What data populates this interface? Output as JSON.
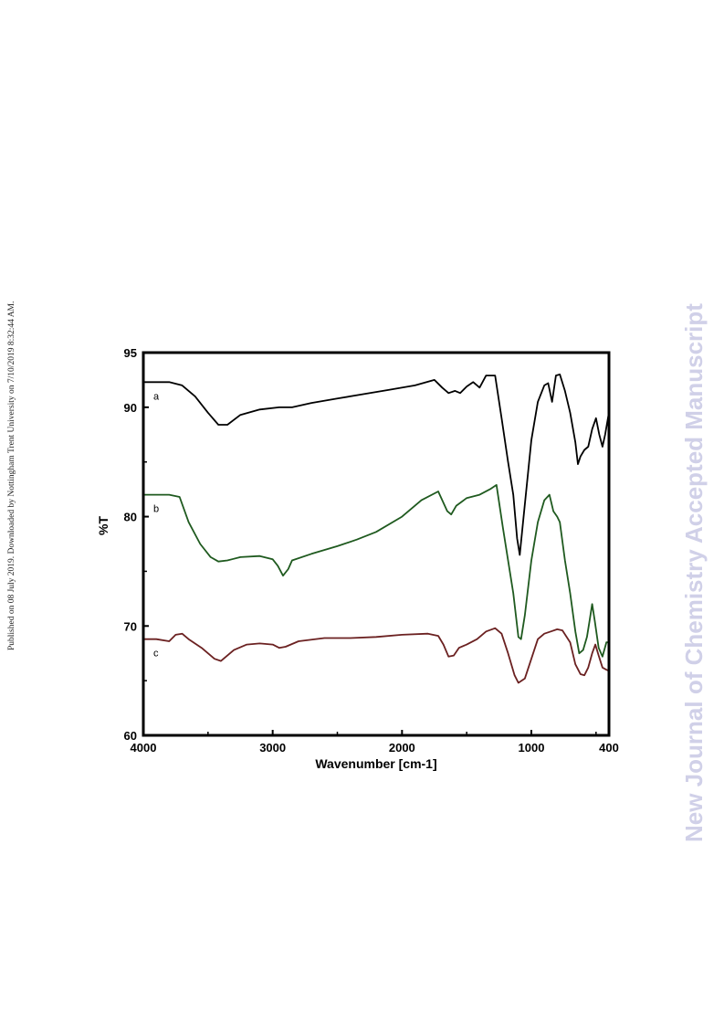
{
  "page": {
    "side_note": "Published on 08 July 2019. Downloaded by Nottingham Trent University on 7/10/2019 8:32:44 AM.",
    "watermark": "New Journal of Chemistry Accepted Manuscript"
  },
  "chart_data": {
    "type": "line",
    "title": "",
    "xlabel": "Wavenumber [cm-1]",
    "ylabel": "%T",
    "xlim": [
      4000,
      400
    ],
    "ylim": [
      60,
      95
    ],
    "x_ticks": [
      4000,
      3000,
      2000,
      1000,
      400
    ],
    "y_ticks": [
      60,
      70,
      80,
      90,
      95
    ],
    "grid": false,
    "legend": "none",
    "series": [
      {
        "name": "a",
        "color": "#000000",
        "points": [
          [
            4000,
            92.3
          ],
          [
            3800,
            92.3
          ],
          [
            3700,
            92.0
          ],
          [
            3600,
            91.0
          ],
          [
            3500,
            89.5
          ],
          [
            3420,
            88.4
          ],
          [
            3350,
            88.4
          ],
          [
            3250,
            89.3
          ],
          [
            3100,
            89.8
          ],
          [
            2950,
            90.0
          ],
          [
            2850,
            90.0
          ],
          [
            2700,
            90.4
          ],
          [
            2500,
            90.8
          ],
          [
            2300,
            91.2
          ],
          [
            2100,
            91.6
          ],
          [
            1900,
            92.0
          ],
          [
            1750,
            92.5
          ],
          [
            1690,
            91.8
          ],
          [
            1640,
            91.3
          ],
          [
            1590,
            91.5
          ],
          [
            1550,
            91.3
          ],
          [
            1500,
            91.9
          ],
          [
            1450,
            92.3
          ],
          [
            1400,
            91.8
          ],
          [
            1350,
            92.9
          ],
          [
            1280,
            92.9
          ],
          [
            1230,
            89.0
          ],
          [
            1180,
            85.0
          ],
          [
            1140,
            82.0
          ],
          [
            1110,
            78.0
          ],
          [
            1090,
            76.5
          ],
          [
            1060,
            80.0
          ],
          [
            1000,
            87.0
          ],
          [
            950,
            90.5
          ],
          [
            900,
            92.0
          ],
          [
            870,
            92.2
          ],
          [
            840,
            90.5
          ],
          [
            810,
            92.9
          ],
          [
            780,
            93.0
          ],
          [
            740,
            91.5
          ],
          [
            700,
            89.5
          ],
          [
            660,
            86.8
          ],
          [
            640,
            84.8
          ],
          [
            620,
            85.5
          ],
          [
            590,
            86.1
          ],
          [
            560,
            86.4
          ],
          [
            530,
            88.0
          ],
          [
            500,
            89.0
          ],
          [
            475,
            87.5
          ],
          [
            450,
            86.4
          ],
          [
            430,
            87.5
          ],
          [
            405,
            89.2
          ],
          [
            400,
            89.4
          ]
        ]
      },
      {
        "name": "b",
        "color": "#1f5a1f",
        "points": [
          [
            4000,
            82.0
          ],
          [
            3800,
            82.0
          ],
          [
            3720,
            81.8
          ],
          [
            3650,
            79.5
          ],
          [
            3560,
            77.5
          ],
          [
            3480,
            76.3
          ],
          [
            3420,
            75.9
          ],
          [
            3350,
            76.0
          ],
          [
            3250,
            76.3
          ],
          [
            3100,
            76.4
          ],
          [
            3000,
            76.1
          ],
          [
            2960,
            75.5
          ],
          [
            2920,
            74.6
          ],
          [
            2880,
            75.2
          ],
          [
            2850,
            76.0
          ],
          [
            2700,
            76.6
          ],
          [
            2500,
            77.3
          ],
          [
            2350,
            77.9
          ],
          [
            2200,
            78.6
          ],
          [
            2000,
            80.0
          ],
          [
            1850,
            81.5
          ],
          [
            1720,
            82.3
          ],
          [
            1650,
            80.5
          ],
          [
            1620,
            80.2
          ],
          [
            1580,
            81.0
          ],
          [
            1500,
            81.7
          ],
          [
            1400,
            82.0
          ],
          [
            1320,
            82.5
          ],
          [
            1270,
            82.9
          ],
          [
            1220,
            79.0
          ],
          [
            1180,
            76.0
          ],
          [
            1140,
            73.0
          ],
          [
            1100,
            69.0
          ],
          [
            1080,
            68.8
          ],
          [
            1050,
            71.0
          ],
          [
            1000,
            76.0
          ],
          [
            950,
            79.5
          ],
          [
            900,
            81.5
          ],
          [
            860,
            82.0
          ],
          [
            830,
            80.5
          ],
          [
            800,
            80.0
          ],
          [
            780,
            79.5
          ],
          [
            740,
            76.0
          ],
          [
            700,
            73.0
          ],
          [
            660,
            69.5
          ],
          [
            630,
            67.5
          ],
          [
            600,
            67.8
          ],
          [
            570,
            69.0
          ],
          [
            550,
            70.5
          ],
          [
            530,
            72.0
          ],
          [
            510,
            70.5
          ],
          [
            480,
            68.0
          ],
          [
            450,
            67.2
          ],
          [
            420,
            68.5
          ],
          [
            400,
            68.5
          ]
        ]
      },
      {
        "name": "c",
        "color": "#6b2121",
        "points": [
          [
            4000,
            68.8
          ],
          [
            3900,
            68.8
          ],
          [
            3800,
            68.6
          ],
          [
            3750,
            69.2
          ],
          [
            3700,
            69.3
          ],
          [
            3650,
            68.8
          ],
          [
            3550,
            68.0
          ],
          [
            3450,
            67.0
          ],
          [
            3400,
            66.8
          ],
          [
            3300,
            67.8
          ],
          [
            3200,
            68.3
          ],
          [
            3100,
            68.4
          ],
          [
            3000,
            68.3
          ],
          [
            2950,
            68.0
          ],
          [
            2900,
            68.1
          ],
          [
            2800,
            68.6
          ],
          [
            2600,
            68.9
          ],
          [
            2400,
            68.9
          ],
          [
            2200,
            69.0
          ],
          [
            2000,
            69.2
          ],
          [
            1800,
            69.3
          ],
          [
            1720,
            69.1
          ],
          [
            1680,
            68.3
          ],
          [
            1640,
            67.2
          ],
          [
            1600,
            67.3
          ],
          [
            1560,
            68.0
          ],
          [
            1500,
            68.3
          ],
          [
            1420,
            68.8
          ],
          [
            1350,
            69.5
          ],
          [
            1280,
            69.8
          ],
          [
            1230,
            69.3
          ],
          [
            1180,
            67.5
          ],
          [
            1130,
            65.5
          ],
          [
            1100,
            64.8
          ],
          [
            1050,
            65.2
          ],
          [
            1000,
            67.0
          ],
          [
            950,
            68.8
          ],
          [
            900,
            69.3
          ],
          [
            850,
            69.5
          ],
          [
            800,
            69.7
          ],
          [
            760,
            69.6
          ],
          [
            700,
            68.5
          ],
          [
            660,
            66.5
          ],
          [
            620,
            65.6
          ],
          [
            590,
            65.5
          ],
          [
            560,
            66.2
          ],
          [
            530,
            67.5
          ],
          [
            505,
            68.3
          ],
          [
            480,
            67.3
          ],
          [
            450,
            66.2
          ],
          [
            420,
            66.0
          ],
          [
            400,
            65.9
          ]
        ]
      }
    ]
  }
}
